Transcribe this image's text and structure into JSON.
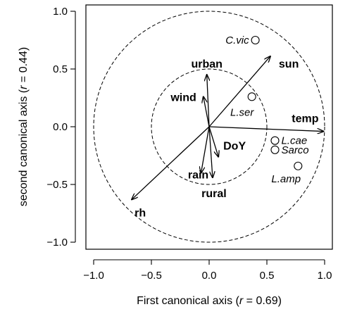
{
  "chart_data": {
    "type": "scatter",
    "xlabel_prefix": "First canonical axis (",
    "xlabel_var": "r",
    "xlabel_suffix": " = 0.69)",
    "ylabel_prefix": "second canonical axis (",
    "ylabel_var": "r",
    "ylabel_suffix": " = 0.44)",
    "xlim": [
      -1.05,
      1.05
    ],
    "ylim": [
      -1.05,
      1.05
    ],
    "x_ticks": [
      -1.0,
      -0.5,
      0.0,
      0.5,
      1.0
    ],
    "y_ticks": [
      -1.0,
      -0.5,
      0.0,
      0.5,
      1.0
    ],
    "x_tick_labels": [
      "−1.0",
      "−0.5",
      "0.0",
      "0.5",
      "1.0"
    ],
    "y_tick_labels": [
      "−1.0",
      "−0.5",
      "0.0",
      "0.5",
      "1.0"
    ],
    "circles": [
      {
        "radius": 1.0,
        "style": "dashed"
      },
      {
        "radius": 0.5,
        "style": "dashed"
      }
    ],
    "vectors": [
      {
        "name": "urban",
        "x": -0.02,
        "y": 0.45,
        "label_anchor": "above"
      },
      {
        "name": "wind",
        "x": -0.05,
        "y": 0.26,
        "label_anchor": "left"
      },
      {
        "name": "sun",
        "x": 0.53,
        "y": 0.61,
        "label_anchor": "below-right"
      },
      {
        "name": "temp",
        "x": 0.99,
        "y": -0.04,
        "label_anchor": "above"
      },
      {
        "name": "DoY",
        "x": 0.08,
        "y": -0.26,
        "label_anchor": "right"
      },
      {
        "name": "rain",
        "x": -0.07,
        "y": -0.4,
        "label_anchor": "below"
      },
      {
        "name": "rural",
        "x": 0.03,
        "y": -0.44,
        "label_anchor": "below"
      },
      {
        "name": "rh",
        "x": -0.67,
        "y": -0.63,
        "label_anchor": "below"
      }
    ],
    "species": [
      {
        "name": "C.vic",
        "x": 0.4,
        "y": 0.75,
        "label_anchor": "left"
      },
      {
        "name": "L.ser",
        "x": 0.37,
        "y": 0.26,
        "label_anchor": "below"
      },
      {
        "name": "L.cae",
        "x": 0.57,
        "y": -0.12,
        "label_anchor": "right"
      },
      {
        "name": "Sarco",
        "x": 0.57,
        "y": -0.2,
        "label_anchor": "right"
      },
      {
        "name": "L.amp",
        "x": 0.77,
        "y": -0.34,
        "label_anchor": "below"
      }
    ]
  }
}
